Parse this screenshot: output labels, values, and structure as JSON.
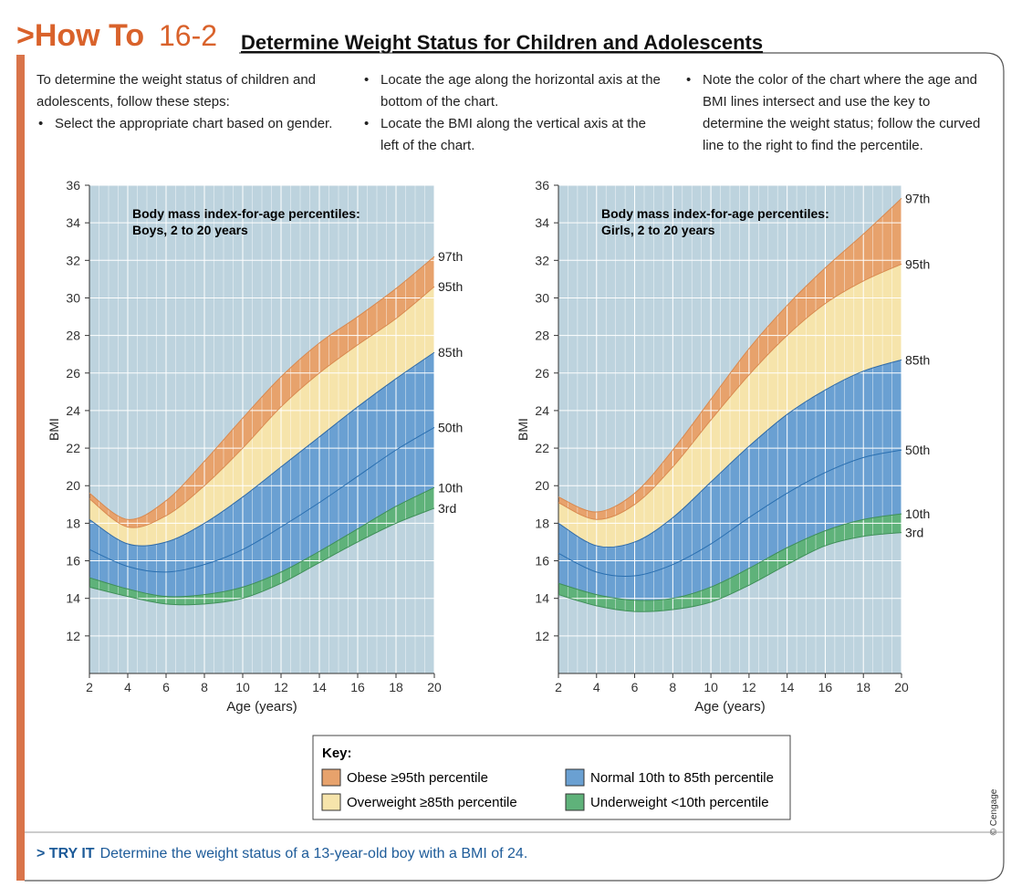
{
  "header": {
    "label": ">How To",
    "number": "16-2",
    "title": "Determine Weight Status for Children and Adolescents"
  },
  "intro": "To determine the weight status of children and adolescents, follow these steps:",
  "steps": [
    "Select the appropriate chart based on gender.",
    "Locate the age along the horizontal axis at the bottom of the chart.",
    "Locate the BMI along the vertical axis at the left of the chart.",
    "Note the color of the chart where the age and BMI lines intersect and use the key to determine the weight status; follow the curved line to the right to find the percentile."
  ],
  "chart_data": [
    {
      "type": "line",
      "title": "Body mass index-for-age percentiles:",
      "subtitle": "Boys, 2 to 20 years",
      "x_label": "Age (years)",
      "y_label": "BMI",
      "x": [
        2,
        4,
        6,
        8,
        10,
        12,
        14,
        16,
        18,
        20
      ],
      "series": [
        {
          "name": "3rd",
          "color": "#3f8f58",
          "values": [
            14.6,
            14.1,
            13.7,
            13.7,
            14.0,
            14.8,
            15.9,
            17.0,
            18.0,
            18.8
          ]
        },
        {
          "name": "10th",
          "color": "#3f8f58",
          "values": [
            15.1,
            14.5,
            14.1,
            14.2,
            14.6,
            15.4,
            16.5,
            17.7,
            18.9,
            19.9
          ]
        },
        {
          "name": "50th",
          "color": "#2a6fb0",
          "values": [
            16.6,
            15.7,
            15.4,
            15.8,
            16.6,
            17.8,
            19.1,
            20.5,
            21.9,
            23.1
          ]
        },
        {
          "name": "85th",
          "color": "#2f6aa8",
          "values": [
            18.2,
            16.9,
            17.0,
            18.0,
            19.4,
            21.0,
            22.6,
            24.2,
            25.7,
            27.1
          ]
        },
        {
          "name": "95th",
          "color": "#d98a50",
          "values": [
            19.3,
            17.8,
            18.4,
            20.0,
            22.0,
            24.2,
            26.0,
            27.5,
            28.9,
            30.6
          ]
        },
        {
          "name": "97th",
          "color": "#d98a50",
          "values": [
            19.6,
            18.2,
            19.2,
            21.3,
            23.6,
            25.8,
            27.6,
            29.0,
            30.5,
            32.2
          ]
        }
      ],
      "band_colors": [
        "#5fb27a",
        "#6aa0d2",
        "#6aa0d2",
        "#f6e4ab",
        "#e7a26c"
      ],
      "background": "#bdd3de",
      "xlim": [
        2,
        20
      ],
      "xticks": [
        2,
        4,
        6,
        8,
        10,
        12,
        14,
        16,
        18,
        20
      ],
      "ylim": [
        10,
        36
      ],
      "yticks": [
        12,
        14,
        16,
        18,
        20,
        22,
        24,
        26,
        28,
        30,
        32,
        34,
        36
      ],
      "grid": true
    },
    {
      "type": "line",
      "title": "Body mass index-for-age percentiles:",
      "subtitle": "Girls, 2 to 20 years",
      "x_label": "Age (years)",
      "y_label": "BMI",
      "x": [
        2,
        4,
        6,
        8,
        10,
        12,
        14,
        16,
        18,
        20
      ],
      "series": [
        {
          "name": "3rd",
          "color": "#3f8f58",
          "values": [
            14.2,
            13.6,
            13.3,
            13.4,
            13.8,
            14.7,
            15.8,
            16.8,
            17.3,
            17.5
          ]
        },
        {
          "name": "10th",
          "color": "#3f8f58",
          "values": [
            14.8,
            14.2,
            13.9,
            14.0,
            14.6,
            15.6,
            16.7,
            17.6,
            18.2,
            18.5
          ]
        },
        {
          "name": "50th",
          "color": "#2a6fb0",
          "values": [
            16.4,
            15.4,
            15.2,
            15.8,
            16.9,
            18.3,
            19.6,
            20.7,
            21.5,
            21.9
          ]
        },
        {
          "name": "85th",
          "color": "#2f6aa8",
          "values": [
            18.0,
            16.8,
            17.0,
            18.3,
            20.2,
            22.1,
            23.8,
            25.1,
            26.1,
            26.7
          ]
        },
        {
          "name": "95th",
          "color": "#d98a50",
          "values": [
            19.1,
            18.2,
            19.0,
            21.0,
            23.5,
            25.9,
            28.0,
            29.7,
            30.9,
            31.8
          ]
        },
        {
          "name": "97th",
          "color": "#d98a50",
          "values": [
            19.4,
            18.6,
            19.6,
            21.9,
            24.6,
            27.3,
            29.6,
            31.6,
            33.4,
            35.3
          ]
        }
      ],
      "band_colors": [
        "#5fb27a",
        "#6aa0d2",
        "#6aa0d2",
        "#f6e4ab",
        "#e7a26c"
      ],
      "background": "#bdd3de",
      "xlim": [
        2,
        20
      ],
      "xticks": [
        2,
        4,
        6,
        8,
        10,
        12,
        14,
        16,
        18,
        20
      ],
      "ylim": [
        10,
        36
      ],
      "yticks": [
        12,
        14,
        16,
        18,
        20,
        22,
        24,
        26,
        28,
        30,
        32,
        34,
        36
      ],
      "grid": true
    }
  ],
  "key": {
    "title": "Key:",
    "items": [
      {
        "label": "Obese ≥95th percentile",
        "color": "#e7a26c"
      },
      {
        "label": "Overweight ≥85th percentile",
        "color": "#f6e4ab"
      },
      {
        "label": "Normal 10th to 85th percentile",
        "color": "#6aa0d2"
      },
      {
        "label": "Underweight <10th percentile",
        "color": "#5fb27a"
      }
    ]
  },
  "try_it": {
    "label": "> TRY IT",
    "text": "Determine the weight status of a 13-year-old boy with a BMI of 24."
  },
  "credit": "© Cengage"
}
